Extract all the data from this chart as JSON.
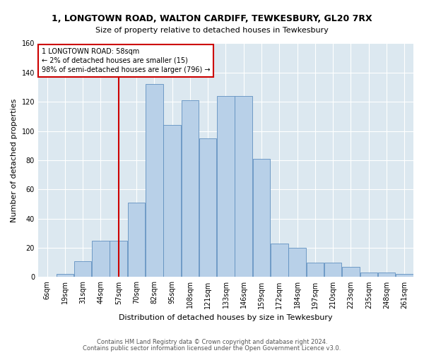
{
  "title": "1, LONGTOWN ROAD, WALTON CARDIFF, TEWKESBURY, GL20 7RX",
  "subtitle": "Size of property relative to detached houses in Tewkesbury",
  "xlabel": "Distribution of detached houses by size in Tewkesbury",
  "ylabel": "Number of detached properties",
  "bar_color": "#b8d0e8",
  "bar_edge_color": "#6090c0",
  "background_color": "#dce8f0",
  "categories": [
    "6sqm",
    "19sqm",
    "31sqm",
    "44sqm",
    "57sqm",
    "70sqm",
    "82sqm",
    "95sqm",
    "108sqm",
    "121sqm",
    "133sqm",
    "146sqm",
    "159sqm",
    "172sqm",
    "184sqm",
    "197sqm",
    "210sqm",
    "223sqm",
    "235sqm",
    "248sqm",
    "261sqm"
  ],
  "values": [
    0,
    2,
    11,
    25,
    25,
    51,
    132,
    104,
    121,
    95,
    124,
    124,
    81,
    23,
    20,
    10,
    10,
    7,
    3,
    3,
    2
  ],
  "vline_index": 4,
  "vline_color": "#cc0000",
  "annotation_text": "1 LONGTOWN ROAD: 58sqm\n← 2% of detached houses are smaller (15)\n98% of semi-detached houses are larger (796) →",
  "annotation_box_color": "#cc0000",
  "ylim": [
    0,
    160
  ],
  "yticks": [
    0,
    20,
    40,
    60,
    80,
    100,
    120,
    140,
    160
  ],
  "title_fontsize": 9,
  "subtitle_fontsize": 8,
  "ylabel_fontsize": 8,
  "xlabel_fontsize": 8,
  "tick_fontsize": 7,
  "footer_line1": "Contains HM Land Registry data © Crown copyright and database right 2024.",
  "footer_line2": "Contains public sector information licensed under the Open Government Licence v3.0."
}
